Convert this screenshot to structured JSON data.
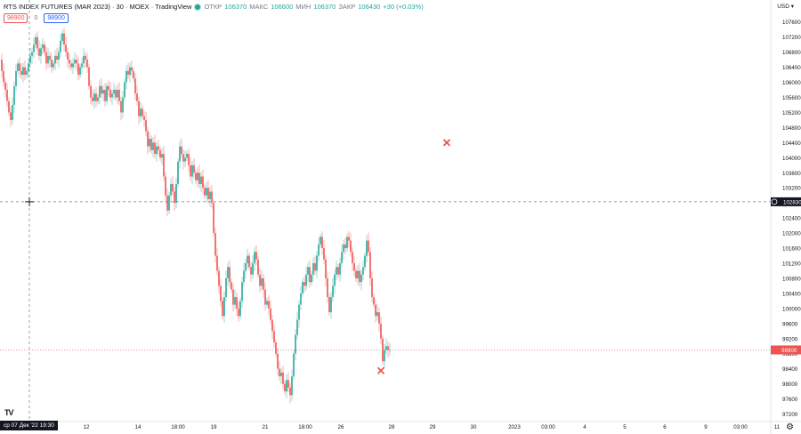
{
  "header": {
    "title": "RTS INDEX FUTURES (MAR 2023) · 30 · MOEX · TradingView",
    "open_label": "ОТКР",
    "open_value": "106370",
    "high_label": "МАКС",
    "high_value": "106600",
    "low_label": "МИН",
    "low_value": "106370",
    "close_label": "ЗАКР",
    "close_value": "106430",
    "change": "+30 (+0.03%)"
  },
  "trade": {
    "sell_price": "98900",
    "quantity": "0",
    "buy_price": "98900"
  },
  "currency": "USD",
  "crosshair_time": "ср 07 Дек '22  19:30",
  "logo": "TV",
  "colors": {
    "up": "#26a69a",
    "down": "#ef5350",
    "axis": "#131722",
    "crosshair": "#787b86"
  },
  "chart_data": {
    "type": "candlestick",
    "ylim": [
      97000,
      107900
    ],
    "y_ticks": [
      107600,
      107200,
      106800,
      106400,
      106000,
      105600,
      105200,
      104800,
      104400,
      104000,
      103600,
      103200,
      102800,
      102400,
      102000,
      101600,
      101200,
      100800,
      100400,
      100000,
      99600,
      99200,
      98800,
      98400,
      98000,
      97600,
      97200
    ],
    "x_ticks": [
      "09",
      "12",
      "14",
      "18:00",
      "19",
      "21",
      "18:00",
      "26",
      "28",
      "29",
      "30",
      "2023",
      "03:00",
      "4",
      "5",
      "6",
      "9",
      "03:00",
      "11"
    ],
    "crosshair_price": "102830",
    "current_price": "98900",
    "close_path": [
      [
        0,
        106600
      ],
      [
        2,
        106300
      ],
      [
        4,
        106000
      ],
      [
        6,
        105800
      ],
      [
        8,
        105500
      ],
      [
        10,
        105200
      ],
      [
        12,
        105000
      ],
      [
        14,
        105400
      ],
      [
        16,
        105900
      ],
      [
        18,
        106300
      ],
      [
        20,
        106500
      ],
      [
        22,
        106300
      ],
      [
        24,
        106200
      ],
      [
        26,
        106400
      ],
      [
        28,
        106200
      ],
      [
        30,
        106300
      ],
      [
        32,
        106500
      ],
      [
        34,
        106700
      ],
      [
        36,
        106800
      ],
      [
        38,
        107000
      ],
      [
        40,
        107200
      ],
      [
        42,
        106900
      ],
      [
        44,
        106700
      ],
      [
        46,
        106900
      ],
      [
        48,
        107000
      ],
      [
        50,
        106800
      ],
      [
        52,
        106500
      ],
      [
        54,
        106700
      ],
      [
        56,
        106600
      ],
      [
        58,
        106400
      ],
      [
        60,
        106500
      ],
      [
        62,
        106700
      ],
      [
        64,
        106600
      ],
      [
        66,
        106800
      ],
      [
        68,
        107100
      ],
      [
        70,
        107300
      ],
      [
        72,
        107000
      ],
      [
        74,
        106800
      ],
      [
        76,
        106600
      ],
      [
        78,
        106500
      ],
      [
        80,
        106400
      ],
      [
        82,
        106500
      ],
      [
        84,
        106600
      ],
      [
        86,
        106500
      ],
      [
        88,
        106200
      ],
      [
        90,
        106400
      ],
      [
        92,
        106500
      ],
      [
        94,
        106700
      ],
      [
        96,
        106600
      ],
      [
        98,
        106400
      ],
      [
        100,
        105900
      ],
      [
        102,
        105600
      ],
      [
        104,
        105500
      ],
      [
        106,
        105700
      ],
      [
        108,
        105500
      ],
      [
        110,
        105600
      ],
      [
        112,
        105900
      ],
      [
        114,
        105700
      ],
      [
        116,
        105800
      ],
      [
        118,
        105500
      ],
      [
        120,
        105900
      ],
      [
        122,
        105800
      ],
      [
        124,
        105600
      ],
      [
        126,
        105700
      ],
      [
        128,
        105800
      ],
      [
        130,
        105600
      ],
      [
        132,
        105800
      ],
      [
        134,
        105500
      ],
      [
        136,
        105200
      ],
      [
        138,
        105600
      ],
      [
        140,
        106000
      ],
      [
        142,
        106300
      ],
      [
        144,
        106200
      ],
      [
        146,
        106400
      ],
      [
        148,
        106300
      ],
      [
        150,
        106100
      ],
      [
        152,
        105700
      ],
      [
        154,
        105500
      ],
      [
        156,
        105100
      ],
      [
        158,
        105300
      ],
      [
        160,
        105100
      ],
      [
        162,
        105000
      ],
      [
        164,
        104700
      ],
      [
        166,
        104300
      ],
      [
        168,
        104500
      ],
      [
        170,
        104200
      ],
      [
        172,
        104400
      ],
      [
        174,
        104100
      ],
      [
        176,
        104300
      ],
      [
        178,
        104200
      ],
      [
        180,
        104000
      ],
      [
        182,
        104100
      ],
      [
        184,
        103500
      ],
      [
        186,
        103000
      ],
      [
        188,
        102600
      ],
      [
        190,
        103000
      ],
      [
        192,
        103300
      ],
      [
        194,
        103100
      ],
      [
        196,
        102800
      ],
      [
        198,
        103300
      ],
      [
        200,
        103900
      ],
      [
        202,
        104300
      ],
      [
        204,
        104100
      ],
      [
        206,
        103900
      ],
      [
        208,
        104000
      ],
      [
        210,
        104100
      ],
      [
        212,
        103800
      ],
      [
        214,
        103500
      ],
      [
        216,
        103800
      ],
      [
        218,
        103600
      ],
      [
        220,
        103400
      ],
      [
        222,
        103600
      ],
      [
        224,
        103300
      ],
      [
        226,
        103500
      ],
      [
        228,
        103200
      ],
      [
        230,
        103000
      ],
      [
        232,
        103200
      ],
      [
        234,
        102900
      ],
      [
        236,
        103100
      ],
      [
        238,
        102800
      ],
      [
        240,
        102000
      ],
      [
        242,
        101400
      ],
      [
        244,
        101000
      ],
      [
        246,
        100600
      ],
      [
        248,
        100200
      ],
      [
        250,
        99800
      ],
      [
        252,
        100300
      ],
      [
        254,
        100800
      ],
      [
        256,
        101100
      ],
      [
        258,
        100700
      ],
      [
        260,
        100500
      ],
      [
        262,
        100100
      ],
      [
        264,
        100300
      ],
      [
        266,
        100000
      ],
      [
        268,
        99800
      ],
      [
        270,
        100200
      ],
      [
        272,
        100700
      ],
      [
        274,
        101000
      ],
      [
        276,
        101200
      ],
      [
        278,
        101400
      ],
      [
        280,
        101100
      ],
      [
        282,
        100900
      ],
      [
        284,
        101200
      ],
      [
        286,
        101500
      ],
      [
        288,
        101300
      ],
      [
        290,
        100900
      ],
      [
        292,
        100600
      ],
      [
        294,
        100800
      ],
      [
        296,
        100500
      ],
      [
        298,
        100100
      ],
      [
        300,
        100200
      ],
      [
        302,
        100000
      ],
      [
        304,
        99700
      ],
      [
        306,
        99400
      ],
      [
        308,
        99100
      ],
      [
        310,
        98800
      ],
      [
        312,
        98400
      ],
      [
        314,
        98200
      ],
      [
        316,
        98300
      ],
      [
        318,
        98000
      ],
      [
        320,
        97800
      ],
      [
        322,
        98100
      ],
      [
        324,
        97900
      ],
      [
        326,
        97700
      ],
      [
        328,
        98200
      ],
      [
        330,
        98800
      ],
      [
        332,
        99300
      ],
      [
        334,
        99700
      ],
      [
        336,
        100100
      ],
      [
        338,
        100400
      ],
      [
        340,
        100700
      ],
      [
        342,
        100600
      ],
      [
        344,
        100900
      ],
      [
        346,
        101100
      ],
      [
        348,
        100700
      ],
      [
        350,
        100900
      ],
      [
        352,
        101200
      ],
      [
        354,
        101000
      ],
      [
        356,
        101400
      ],
      [
        358,
        101700
      ],
      [
        360,
        101900
      ],
      [
        362,
        101600
      ],
      [
        364,
        101300
      ],
      [
        366,
        100800
      ],
      [
        368,
        100300
      ],
      [
        370,
        99900
      ],
      [
        372,
        100300
      ],
      [
        374,
        100600
      ],
      [
        376,
        100900
      ],
      [
        378,
        101100
      ],
      [
        380,
        100900
      ],
      [
        382,
        101200
      ],
      [
        384,
        101500
      ],
      [
        386,
        101700
      ],
      [
        388,
        101600
      ],
      [
        390,
        101900
      ],
      [
        392,
        101800
      ],
      [
        394,
        101500
      ],
      [
        396,
        101200
      ],
      [
        398,
        101000
      ],
      [
        400,
        100800
      ],
      [
        402,
        101000
      ],
      [
        404,
        100700
      ],
      [
        406,
        100900
      ],
      [
        408,
        101100
      ],
      [
        410,
        101400
      ],
      [
        412,
        101800
      ],
      [
        414,
        101500
      ],
      [
        416,
        100800
      ],
      [
        418,
        100300
      ],
      [
        420,
        100100
      ],
      [
        422,
        99800
      ],
      [
        424,
        99900
      ],
      [
        426,
        99600
      ],
      [
        428,
        99200
      ],
      [
        430,
        98600
      ],
      [
        432,
        98900
      ],
      [
        434,
        99000
      ],
      [
        436,
        98900
      ],
      [
        438,
        98900
      ]
    ],
    "markers": [
      {
        "type": "cross",
        "time_px": 502,
        "price": 104400
      },
      {
        "type": "cross",
        "time_px": 428,
        "price": 98350
      }
    ]
  }
}
